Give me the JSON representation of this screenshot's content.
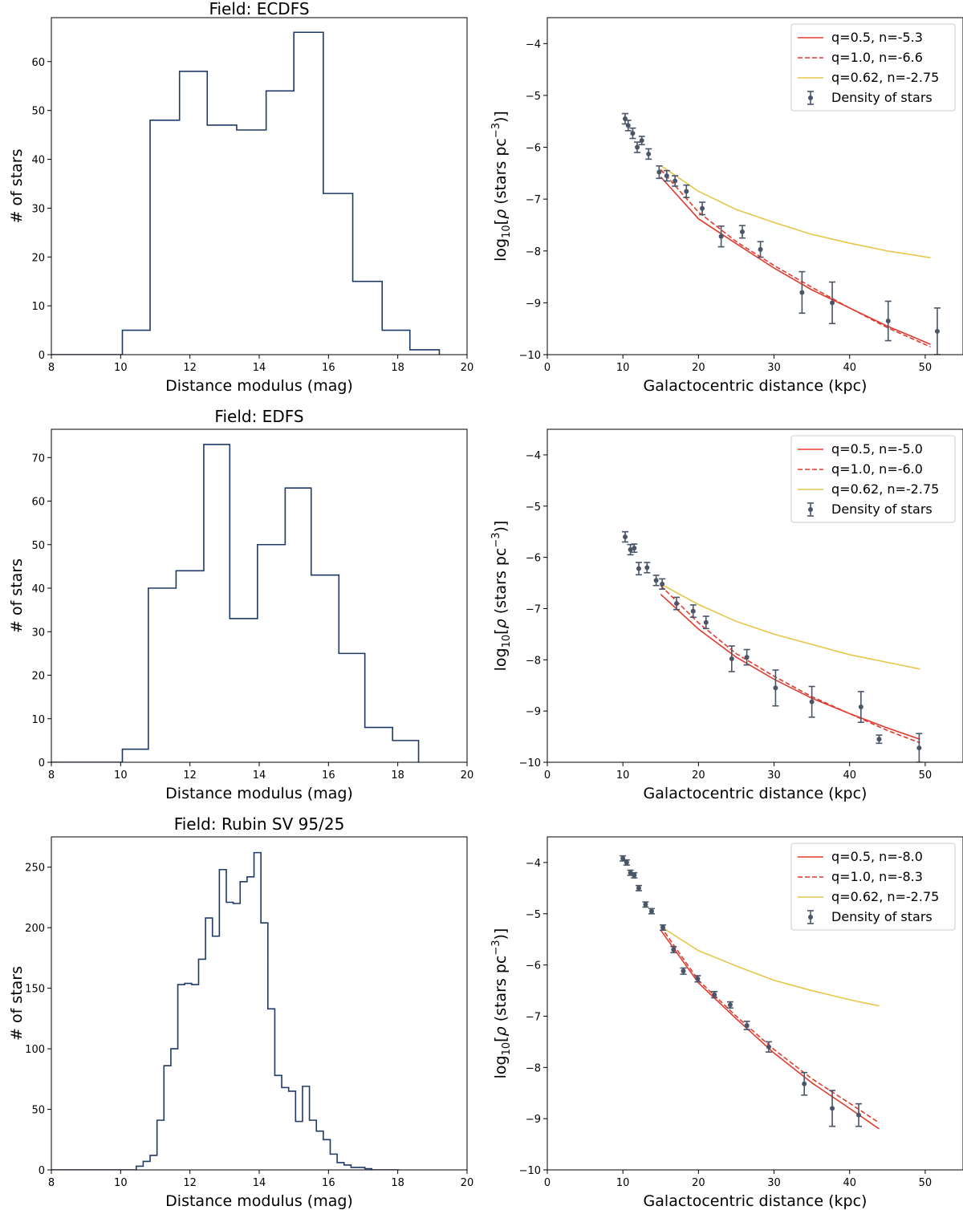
{
  "colors": {
    "hist": "#1f3a66",
    "model_red": "#e03b2f",
    "model_yellow": "#e6c64a",
    "points": "#4a5568",
    "axis": "#000000",
    "legend_border": "#cccccc"
  },
  "chart_data": [
    {
      "type": "histogram",
      "title": "Field: ECDFS",
      "xlabel": "Distance modulus (mag)",
      "ylabel": "# of stars",
      "xlim": [
        8,
        20
      ],
      "ylim": [
        0,
        69
      ],
      "xticks": [
        8,
        10,
        12,
        14,
        16,
        18,
        20
      ],
      "xtick_labels": [
        "8",
        "10",
        "12",
        "14",
        "16",
        "18",
        "20"
      ],
      "yticks": [
        0,
        10,
        20,
        30,
        40,
        50,
        60
      ],
      "ytick_labels": [
        "0",
        "10",
        "20",
        "30",
        "40",
        "50",
        "60"
      ],
      "bin_edges": [
        8,
        10.05,
        10.85,
        11.7,
        12.5,
        13.35,
        14.2,
        15.0,
        15.85,
        16.7,
        17.55,
        18.35,
        19.2
      ],
      "counts": [
        0,
        5,
        48,
        58,
        47,
        46,
        54,
        66,
        33,
        15,
        5,
        1
      ],
      "hist_end": 19.2
    },
    {
      "type": "line",
      "xlabel": "Galactocentric distance (kpc)",
      "ylabel": "log10[ρ (stars pc^-3)]",
      "xlim": [
        0,
        55
      ],
      "ylim": [
        -10,
        -3.5
      ],
      "xticks": [
        0,
        10,
        20,
        30,
        40,
        50
      ],
      "xtick_labels": [
        "0",
        "10",
        "20",
        "30",
        "40",
        "50"
      ],
      "yticks": [
        -10,
        -9,
        -8,
        -7,
        -6,
        -5,
        -4
      ],
      "ytick_labels": [
        "−10",
        "−9",
        "−8",
        "−7",
        "−6",
        "−5",
        "−4"
      ],
      "legend": [
        "q=0.5, n=-5.3",
        "q=1.0, n=-6.6",
        "q=0.62, n=-2.75",
        "Density of stars"
      ],
      "series": [
        {
          "name": "q=0.5, n=-5.3",
          "style": "solid",
          "color": "red",
          "x": [
            15,
            20,
            25,
            30,
            35,
            40,
            45,
            50.7
          ],
          "y": [
            -6.57,
            -7.38,
            -7.86,
            -8.33,
            -8.75,
            -9.1,
            -9.45,
            -9.8
          ]
        },
        {
          "name": "q=1.0, n=-6.6",
          "style": "dashed",
          "color": "red",
          "x": [
            15,
            20,
            25,
            30,
            35,
            40,
            45,
            50.7
          ],
          "y": [
            -6.43,
            -7.25,
            -7.82,
            -8.28,
            -8.7,
            -9.1,
            -9.48,
            -9.85
          ]
        },
        {
          "name": "q=0.62, n=-2.75",
          "style": "solid",
          "color": "yellow",
          "x": [
            15,
            20,
            25,
            30,
            35,
            40,
            45,
            50.7
          ],
          "y": [
            -6.35,
            -6.85,
            -7.2,
            -7.45,
            -7.68,
            -7.85,
            -8.0,
            -8.13
          ]
        }
      ],
      "points": {
        "name": "Density of stars",
        "x": [
          10.3,
          10.7,
          11.3,
          11.9,
          12.5,
          13.4,
          14.8,
          15.8,
          16.9,
          18.4,
          20.5,
          23.0,
          25.8,
          28.2,
          33.7,
          37.7,
          45.1,
          51.6
        ],
        "y": [
          -5.45,
          -5.58,
          -5.73,
          -6.0,
          -5.87,
          -6.13,
          -6.48,
          -6.55,
          -6.65,
          -6.85,
          -7.18,
          -7.72,
          -7.63,
          -7.97,
          -8.8,
          -9.0,
          -9.35,
          -9.55
        ],
        "err": [
          0.1,
          0.1,
          0.1,
          0.1,
          0.08,
          0.1,
          0.12,
          0.1,
          0.1,
          0.12,
          0.12,
          0.2,
          0.12,
          0.15,
          0.4,
          0.4,
          0.38,
          0.45
        ]
      }
    },
    {
      "type": "histogram",
      "title": "Field: EDFS",
      "xlabel": "Distance modulus (mag)",
      "ylabel": "# of stars",
      "xlim": [
        8,
        20
      ],
      "ylim": [
        0,
        76.5
      ],
      "xticks": [
        8,
        10,
        12,
        14,
        16,
        18,
        20
      ],
      "xtick_labels": [
        "8",
        "10",
        "12",
        "14",
        "16",
        "18",
        "20"
      ],
      "yticks": [
        0,
        10,
        20,
        30,
        40,
        50,
        60,
        70
      ],
      "ytick_labels": [
        "0",
        "10",
        "20",
        "30",
        "40",
        "50",
        "60",
        "70"
      ],
      "bin_edges": [
        8,
        10.05,
        10.8,
        11.6,
        12.4,
        13.15,
        13.95,
        14.75,
        15.5,
        16.3,
        17.05,
        17.85,
        18.6
      ],
      "counts": [
        0,
        3,
        40,
        44,
        73,
        33,
        50,
        63,
        43,
        25,
        8,
        5
      ],
      "hist_end": 18.6
    },
    {
      "type": "line",
      "xlabel": "Galactocentric distance (kpc)",
      "ylabel": "log10[ρ (stars pc^-3)]",
      "xlim": [
        0,
        55
      ],
      "ylim": [
        -10,
        -3.5
      ],
      "xticks": [
        0,
        10,
        20,
        30,
        40,
        50
      ],
      "xtick_labels": [
        "0",
        "10",
        "20",
        "30",
        "40",
        "50"
      ],
      "yticks": [
        -10,
        -9,
        -8,
        -7,
        -6,
        -5,
        -4
      ],
      "ytick_labels": [
        "−10",
        "−9",
        "−8",
        "−7",
        "−6",
        "−5",
        "−4"
      ],
      "legend": [
        "q=0.5, n=-5.0",
        "q=1.0, n=-6.0",
        "q=0.62, n=-2.75",
        "Density of stars"
      ],
      "series": [
        {
          "name": "q=0.5, n=-5.0",
          "style": "solid",
          "color": "red",
          "x": [
            15,
            20,
            25,
            30,
            35,
            40,
            45,
            49.3
          ],
          "y": [
            -6.72,
            -7.4,
            -7.95,
            -8.38,
            -8.75,
            -9.05,
            -9.33,
            -9.55
          ]
        },
        {
          "name": "q=1.0, n=-6.0",
          "style": "dashed",
          "color": "red",
          "x": [
            15,
            20,
            25,
            30,
            35,
            40,
            45,
            49.3
          ],
          "y": [
            -6.55,
            -7.28,
            -7.88,
            -8.32,
            -8.72,
            -9.05,
            -9.38,
            -9.62
          ]
        },
        {
          "name": "q=0.62, n=-2.75",
          "style": "solid",
          "color": "yellow",
          "x": [
            15,
            20,
            25,
            30,
            35,
            40,
            45,
            49.3
          ],
          "y": [
            -6.52,
            -6.92,
            -7.25,
            -7.5,
            -7.7,
            -7.9,
            -8.05,
            -8.18
          ]
        }
      ],
      "points": {
        "name": "Density of stars",
        "x": [
          10.3,
          11.0,
          11.5,
          12.1,
          13.2,
          14.4,
          15.2,
          17.1,
          19.3,
          21.0,
          24.4,
          26.4,
          30.2,
          35.0,
          41.5,
          43.9,
          49.2
        ],
        "y": [
          -5.6,
          -5.85,
          -5.82,
          -6.22,
          -6.2,
          -6.45,
          -6.52,
          -6.9,
          -7.05,
          -7.27,
          -7.98,
          -7.95,
          -8.55,
          -8.82,
          -8.92,
          -9.55,
          -9.72
        ],
        "err": [
          0.1,
          0.1,
          0.08,
          0.12,
          0.1,
          0.1,
          0.1,
          0.12,
          0.12,
          0.12,
          0.25,
          0.15,
          0.35,
          0.3,
          0.3,
          0.08,
          0.28
        ]
      }
    },
    {
      "type": "histogram",
      "title": "Field: Rubin SV 95/25",
      "xlabel": "Distance modulus (mag)",
      "ylabel": "# of stars",
      "xlim": [
        8,
        20
      ],
      "ylim": [
        0,
        275
      ],
      "xticks": [
        8,
        10,
        12,
        14,
        16,
        18,
        20
      ],
      "xtick_labels": [
        "8",
        "10",
        "12",
        "14",
        "16",
        "18",
        "20"
      ],
      "yticks": [
        0,
        50,
        100,
        150,
        200,
        250
      ],
      "ytick_labels": [
        "0",
        "50",
        "100",
        "150",
        "200",
        "250"
      ],
      "bin_edges": [
        8,
        10.45,
        10.65,
        10.85,
        11.05,
        11.25,
        11.45,
        11.65,
        11.85,
        12.05,
        12.25,
        12.45,
        12.65,
        12.85,
        13.05,
        13.25,
        13.45,
        13.65,
        13.85,
        14.05,
        14.25,
        14.45,
        14.65,
        14.85,
        15.05,
        15.25,
        15.45,
        15.65,
        15.85,
        16.05,
        16.25,
        16.45,
        16.65,
        16.85,
        17.05,
        17.25,
        17.45,
        17.65,
        17.85,
        18.05
      ],
      "counts": [
        0,
        3,
        7,
        12,
        41,
        86,
        100,
        153,
        154,
        153,
        174,
        208,
        193,
        248,
        221,
        220,
        238,
        242,
        262,
        204,
        133,
        78,
        68,
        65,
        40,
        69,
        41,
        32,
        25,
        13,
        6,
        4,
        2,
        2,
        1,
        0,
        0,
        0,
        0
      ],
      "hist_end": 18.05
    },
    {
      "type": "line",
      "xlabel": "Galactocentric distance (kpc)",
      "ylabel": "log10[ρ (stars pc^-3)]",
      "xlim": [
        0,
        55
      ],
      "ylim": [
        -10,
        -3.5
      ],
      "xticks": [
        0,
        10,
        20,
        30,
        40,
        50
      ],
      "xtick_labels": [
        "0",
        "10",
        "20",
        "30",
        "40",
        "50"
      ],
      "yticks": [
        -10,
        -9,
        -8,
        -7,
        -6,
        -5,
        -4
      ],
      "ytick_labels": [
        "−10",
        "−9",
        "−8",
        "−7",
        "−6",
        "−5",
        "−4"
      ],
      "legend": [
        "q=0.5, n=-8.0",
        "q=1.0, n=-8.3",
        "q=0.62, n=-2.75",
        "Density of stars"
      ],
      "series": [
        {
          "name": "q=0.5, n=-8.0",
          "style": "solid",
          "color": "red",
          "x": [
            15,
            20,
            25,
            30,
            35,
            40,
            43.9
          ],
          "y": [
            -5.32,
            -6.35,
            -7.05,
            -7.72,
            -8.3,
            -8.8,
            -9.2
          ]
        },
        {
          "name": "q=1.0, n=-8.3",
          "style": "dashed",
          "color": "red",
          "x": [
            15,
            20,
            25,
            30,
            35,
            40,
            43.9
          ],
          "y": [
            -5.25,
            -6.3,
            -7.0,
            -7.65,
            -8.22,
            -8.7,
            -9.08
          ]
        },
        {
          "name": "q=0.62, n=-2.75",
          "style": "solid",
          "color": "yellow",
          "x": [
            15,
            20,
            25,
            30,
            35,
            40,
            43.9
          ],
          "y": [
            -5.25,
            -5.72,
            -6.02,
            -6.3,
            -6.5,
            -6.68,
            -6.8
          ]
        }
      ],
      "points": {
        "name": "Density of stars",
        "x": [
          10.0,
          10.5,
          11.0,
          11.5,
          12.1,
          13.0,
          13.8,
          15.3,
          16.7,
          18.0,
          19.9,
          22.1,
          24.2,
          26.4,
          29.3,
          34.0,
          37.7,
          41.2
        ],
        "y": [
          -3.92,
          -4.0,
          -4.2,
          -4.25,
          -4.5,
          -4.82,
          -4.95,
          -5.27,
          -5.7,
          -6.12,
          -6.27,
          -6.58,
          -6.78,
          -7.18,
          -7.6,
          -8.32,
          -8.8,
          -8.93
        ],
        "err": [
          0.05,
          0.05,
          0.05,
          0.05,
          0.05,
          0.05,
          0.05,
          0.05,
          0.06,
          0.06,
          0.06,
          0.06,
          0.06,
          0.08,
          0.1,
          0.22,
          0.35,
          0.22
        ]
      }
    }
  ]
}
